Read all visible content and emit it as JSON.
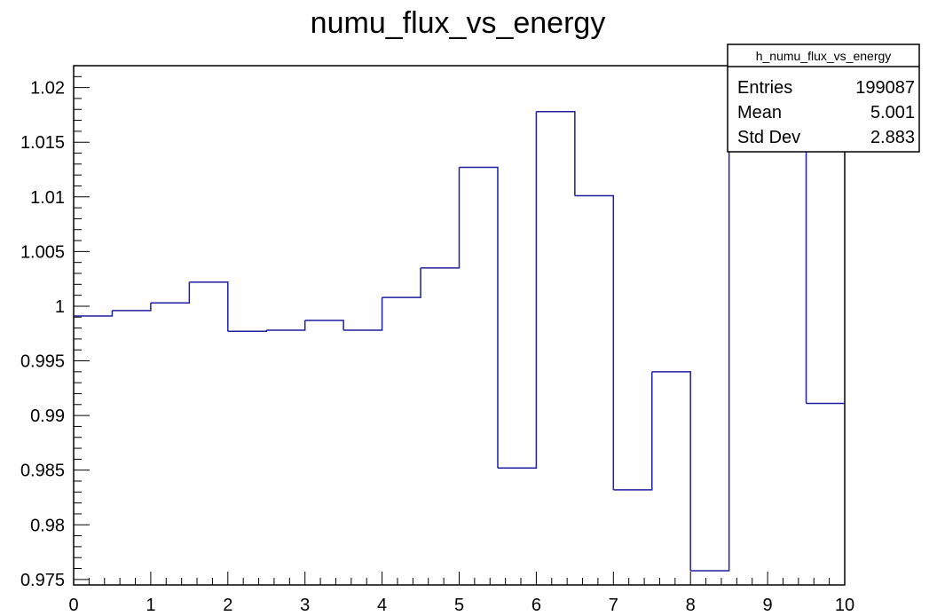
{
  "chart_data": {
    "type": "histogram",
    "title": "numu_flux_vs_energy",
    "xlabel": "",
    "ylabel": "",
    "xlim": [
      0,
      10
    ],
    "ylim": [
      0.9745,
      1.022
    ],
    "grid": false,
    "line_color": "#1f1fa0",
    "bin_edges": [
      0,
      0.5,
      1,
      1.5,
      2,
      2.5,
      3,
      3.5,
      4,
      4.5,
      5,
      5.5,
      6,
      6.5,
      7,
      7.5,
      8,
      8.5,
      9,
      9.5,
      10
    ],
    "values": [
      0.9991,
      0.9996,
      1.0003,
      1.0022,
      0.9977,
      0.9978,
      0.9987,
      0.9978,
      1.0008,
      1.0035,
      1.0127,
      0.9852,
      1.0178,
      1.0101,
      0.9832,
      0.994,
      0.9758,
      1.023,
      1.023,
      0.9911
    ],
    "x_tick_labels": [
      "0",
      "1",
      "2",
      "3",
      "4",
      "5",
      "6",
      "7",
      "8",
      "9",
      "10"
    ],
    "y_tick_labels": [
      "0.975",
      "0.98",
      "0.985",
      "0.99",
      "0.995",
      "1",
      "1.005",
      "1.01",
      "1.015",
      "1.02"
    ],
    "stats_box": {
      "name": "h_numu_flux_vs_energy",
      "rows": [
        {
          "label": "Entries",
          "value": "199087"
        },
        {
          "label": "Mean",
          "value": "5.001"
        },
        {
          "label": "Std Dev",
          "value": "2.883"
        }
      ]
    }
  }
}
